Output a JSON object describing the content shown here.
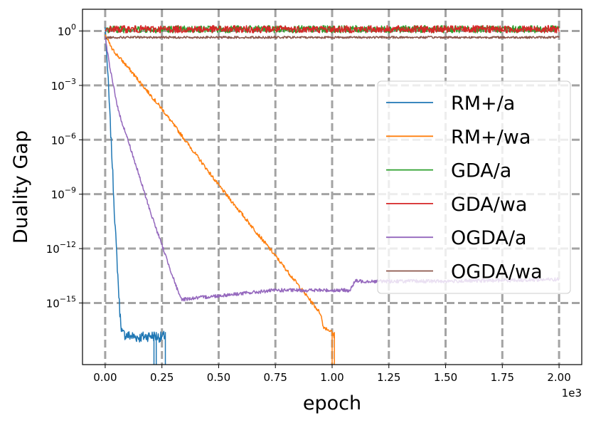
{
  "chart_data": {
    "type": "line",
    "title": "",
    "xlabel": "epoch",
    "ylabel": "Duality Gap",
    "x_scale_label": "1e3",
    "xlim": [
      -0.1,
      2.1
    ],
    "ylim_log10": [
      -18.4,
      1.2
    ],
    "yscale": "log",
    "grid": true,
    "legend_position": "center-right",
    "xticks": [
      {
        "value": 0.0,
        "label": "0.00"
      },
      {
        "value": 0.25,
        "label": "0.25"
      },
      {
        "value": 0.5,
        "label": "0.50"
      },
      {
        "value": 0.75,
        "label": "0.75"
      },
      {
        "value": 1.0,
        "label": "1.00"
      },
      {
        "value": 1.25,
        "label": "1.25"
      },
      {
        "value": 1.5,
        "label": "1.50"
      },
      {
        "value": 1.75,
        "label": "1.75"
      },
      {
        "value": 2.0,
        "label": "2.00"
      }
    ],
    "yticks": [
      {
        "exp": 0,
        "base": "10",
        "power": "0"
      },
      {
        "exp": -3,
        "base": "10",
        "power": "−3"
      },
      {
        "exp": -6,
        "base": "10",
        "power": "−6"
      },
      {
        "exp": -9,
        "base": "10",
        "power": "−9"
      },
      {
        "exp": -12,
        "base": "10",
        "power": "−12"
      },
      {
        "exp": -15,
        "base": "10",
        "power": "−15"
      }
    ],
    "series": [
      {
        "name": "RM+/a",
        "color": "#1f77b4",
        "log10_points": [
          [
            0.0,
            0.2
          ],
          [
            0.003,
            -0.5
          ],
          [
            0.01,
            -2.0
          ],
          [
            0.02,
            -4.5
          ],
          [
            0.03,
            -7.0
          ],
          [
            0.04,
            -9.8
          ],
          [
            0.05,
            -12.2
          ],
          [
            0.06,
            -14.5
          ],
          [
            0.065,
            -15.6
          ],
          [
            0.075,
            -16.7
          ],
          [
            0.1,
            -16.8
          ],
          [
            0.15,
            -16.9
          ],
          [
            0.2,
            -16.8
          ],
          [
            0.25,
            -16.9
          ],
          [
            0.265,
            -16.8
          ]
        ],
        "noise": 0.3,
        "dropouts": [
          0.215,
          0.225,
          0.265
        ]
      },
      {
        "name": "RM+/wa",
        "color": "#ff7f0e",
        "log10_points": [
          [
            0.0,
            -0.2
          ],
          [
            0.03,
            -1.0
          ],
          [
            0.1,
            -2.0
          ],
          [
            0.25,
            -4.3
          ],
          [
            0.5,
            -8.5
          ],
          [
            0.75,
            -12.4
          ],
          [
            0.95,
            -15.6
          ],
          [
            0.96,
            -16.3
          ],
          [
            1.0,
            -16.6
          ],
          [
            1.01,
            -16.9
          ]
        ],
        "noise": 0.1,
        "dropouts": [
          1.0,
          1.01
        ]
      },
      {
        "name": "GDA/a",
        "color": "#2ca02c",
        "log10_points": [
          [
            0.0,
            0.0
          ],
          [
            0.01,
            0.1
          ],
          [
            2.0,
            0.1
          ]
        ],
        "noise": 0.2,
        "dropouts": []
      },
      {
        "name": "GDA/wa",
        "color": "#d62728",
        "log10_points": [
          [
            0.0,
            0.0
          ],
          [
            0.01,
            0.1
          ],
          [
            2.0,
            0.1
          ]
        ],
        "noise": 0.2,
        "dropouts": []
      },
      {
        "name": "OGDA/a",
        "color": "#9467bd",
        "log10_points": [
          [
            0.0,
            -0.3
          ],
          [
            0.02,
            -2.0
          ],
          [
            0.06,
            -4.5
          ],
          [
            0.1,
            -6.0
          ],
          [
            0.2,
            -10.0
          ],
          [
            0.33,
            -14.7
          ],
          [
            0.34,
            -14.8
          ],
          [
            0.5,
            -14.6
          ],
          [
            0.75,
            -14.3
          ],
          [
            1.08,
            -14.3
          ],
          [
            1.1,
            -13.8
          ],
          [
            1.5,
            -13.8
          ],
          [
            2.0,
            -13.7
          ]
        ],
        "noise": 0.1,
        "dropouts": []
      },
      {
        "name": "OGDA/wa",
        "color": "#8c564b",
        "log10_points": [
          [
            0.0,
            -0.4
          ],
          [
            0.02,
            -0.35
          ],
          [
            2.0,
            -0.35
          ]
        ],
        "noise": 0.06,
        "dropouts": []
      }
    ]
  }
}
